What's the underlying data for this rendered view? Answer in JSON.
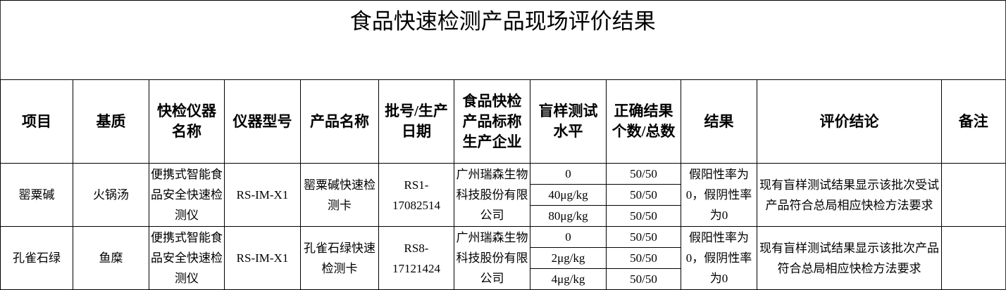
{
  "title": "食品快速检测产品现场评价结果",
  "headers": [
    "项目",
    "基质",
    "快检仪器名称",
    "仪器型号",
    "产品名称",
    "批号/生产日期",
    "食品快检产品标称生产企业",
    "盲样测试水平",
    "正确结果个数/总数",
    "结果",
    "评价结论",
    "备注"
  ],
  "rows": [
    {
      "item": "罂粟碱",
      "matrix": "火锅汤",
      "instrument": "便携式智能食品安全快速检测仪",
      "model": "RS-IM-X1",
      "product": "罂粟碱快速检测卡",
      "batch": "RS1-17082514",
      "manufacturer": "广州瑞森生物科技股份有限公司",
      "levels": [
        {
          "level": "0",
          "correct": "50/50"
        },
        {
          "level": "40μg/kg",
          "correct": "50/50"
        },
        {
          "level": "80μg/kg",
          "correct": "50/50"
        }
      ],
      "result": "假阳性率为0，假阴性率为0",
      "conclusion": "现有盲样测试结果显示该批次受试产品符合总局相应快检方法要求",
      "remark": ""
    },
    {
      "item": "孔雀石绿",
      "matrix": "鱼糜",
      "instrument": "便携式智能食品安全快速检测仪",
      "model": "RS-IM-X1",
      "product": "孔雀石绿快速检测卡",
      "batch": "RS8-17121424",
      "manufacturer": "广州瑞森生物科技股份有限公司",
      "levels": [
        {
          "level": "0",
          "correct": "50/50"
        },
        {
          "level": "2μg/kg",
          "correct": "50/50"
        },
        {
          "level": "4μg/kg",
          "correct": "50/50"
        }
      ],
      "result": "假阳性率为0，假阴性率为0",
      "conclusion": "现有盲样测试结果显示该批次产品符合总局相应快检方法要求",
      "remark": ""
    }
  ]
}
